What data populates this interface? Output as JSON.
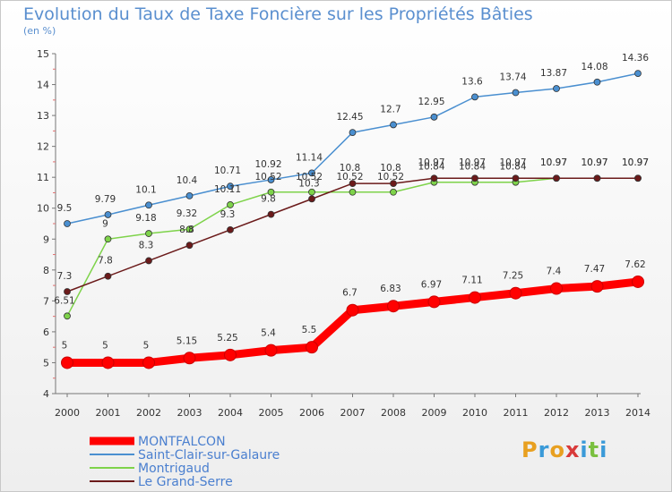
{
  "header": {
    "title": "Evolution du Taux de Taxe Foncière sur les Propriétés Bâties",
    "subtitle": "(en %)"
  },
  "logo": {
    "text": "Proxiti"
  },
  "chart_data": {
    "type": "line",
    "title": "Evolution du Taux de Taxe Foncière sur les Propriétés Bâties",
    "ylabel": "(en %)",
    "xlabel": "",
    "x": [
      "2000",
      "2001",
      "2002",
      "2003",
      "2004",
      "2005",
      "2006",
      "2007",
      "2008",
      "2009",
      "2010",
      "2011",
      "2012",
      "2013",
      "2014"
    ],
    "ylim": [
      4,
      15
    ],
    "yticks": [
      "4",
      "5",
      "6",
      "7",
      "8",
      "9",
      "10",
      "11",
      "12",
      "13",
      "14",
      "15"
    ],
    "grid": false,
    "legend_position": "bottom-left",
    "series": [
      {
        "name": "MONTFALCON",
        "color": "#ff0000",
        "values": [
          5,
          5,
          5,
          5.15,
          5.25,
          5.4,
          5.5,
          6.7,
          6.83,
          6.97,
          7.11,
          7.25,
          7.4,
          7.47,
          7.62
        ],
        "labels": [
          "5",
          "5",
          "5",
          "5.15",
          "5.25",
          "5.4",
          "5.5",
          "6.7",
          "6.83",
          "6.97",
          "7.11",
          "7.25",
          "7.4",
          "7.47",
          "7.62"
        ]
      },
      {
        "name": "Saint-Clair-sur-Galaure",
        "color": "#4a8fd0",
        "values": [
          9.5,
          9.79,
          10.1,
          10.4,
          10.71,
          10.92,
          11.14,
          12.45,
          12.7,
          12.95,
          13.6,
          13.74,
          13.87,
          14.08,
          14.36
        ],
        "labels": [
          "9.5",
          "9.79",
          "10.1",
          "10.4",
          "10.71",
          "10.92",
          "11.14",
          "12.45",
          "12.7",
          "12.95",
          "13.6",
          "13.74",
          "13.87",
          "14.08",
          "14.36"
        ]
      },
      {
        "name": "Montrigaud",
        "color": "#7ed34a",
        "values": [
          6.51,
          9,
          9.18,
          9.32,
          10.11,
          10.52,
          10.52,
          10.52,
          10.52,
          10.84,
          10.84,
          10.84,
          10.97,
          10.97,
          10.97
        ],
        "labels": [
          "6.51",
          "9",
          "9.18",
          "9.32",
          "10.11",
          "10.52",
          "10.52",
          "10.52",
          "10.52",
          "10.84",
          "10.84",
          "10.84",
          "10.97",
          "10.97",
          "10.97"
        ]
      },
      {
        "name": "Le Grand-Serre",
        "color": "#6b1a1a",
        "values": [
          7.3,
          7.8,
          8.3,
          8.8,
          9.3,
          9.8,
          10.3,
          10.8,
          10.8,
          10.97,
          10.97,
          10.97,
          10.97,
          10.97,
          10.97
        ],
        "labels": [
          "7.3",
          "7.8",
          "8.3",
          "8.8",
          "9.3",
          "9.8",
          "10.3",
          "10.8",
          "10.8",
          "10.97",
          "10.97",
          "10.97",
          "10.97",
          "10.97",
          "10.97"
        ]
      }
    ]
  }
}
